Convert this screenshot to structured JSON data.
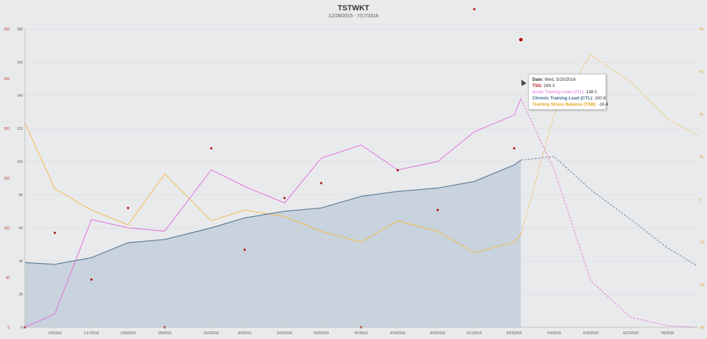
{
  "chart_data": {
    "type": "line",
    "title": "TSTWKT",
    "subtitle": "12/28/2015 - 7/17/2016",
    "x_ticks": [
      "1/6/2016",
      "1/17/2016",
      "1/28/2016",
      "2/8/2016",
      "2/22/2016",
      "3/3/2016",
      "3/15/2016",
      "3/26/2016",
      "4/7/2016",
      "4/18/2016",
      "4/30/2016",
      "5/11/2016",
      "5/23/2016",
      "6/4/2016",
      "6/15/2016",
      "6/27/2016",
      "7/8/2016"
    ],
    "y_left_outer_ticks": [
      "0",
      "50",
      "100",
      "150",
      "200",
      "250",
      "300"
    ],
    "y_left_inner_ticks": [
      "0",
      "20",
      "40",
      "60",
      "80",
      "100",
      "120",
      "140",
      "160",
      "180"
    ],
    "y_right_ticks": [
      "-60",
      "-40",
      "-20",
      "0",
      "20",
      "40",
      "60",
      "80"
    ],
    "ylim_left_inner": [
      0,
      180
    ],
    "ylim_left_outer": [
      0,
      300
    ],
    "ylim_right": [
      -60,
      80
    ],
    "grid": true,
    "colors": {
      "ctl_line": "#5a7a94",
      "ctl_fill": "#c3cfdb",
      "atl": "#e06ed9",
      "tsb": "#f5b945",
      "tss": "#b01010"
    },
    "series": [
      {
        "name": "Chronic Training Load (CTL)",
        "axis": "inner",
        "x": [
          "12/28/2015",
          "1/6/2016",
          "1/17/2016",
          "1/28/2016",
          "2/8/2016",
          "2/22/2016",
          "3/3/2016",
          "3/15/2016",
          "3/26/2016",
          "4/7/2016",
          "4/18/2016",
          "4/30/2016",
          "5/11/2016",
          "5/23/2016",
          "5/25/2016",
          "6/4/2016",
          "6/15/2016",
          "6/27/2016",
          "7/8/2016",
          "7/17/2016"
        ],
        "values": [
          39,
          38,
          42,
          51,
          53,
          60,
          66,
          70,
          72,
          79,
          82,
          84,
          88,
          98,
          100.9,
          103,
          83,
          65,
          48,
          37
        ]
      },
      {
        "name": "Acute Training Load (ATL)",
        "axis": "inner",
        "x": [
          "12/28/2015",
          "1/6/2016",
          "1/17/2016",
          "1/28/2016",
          "2/8/2016",
          "2/22/2016",
          "3/3/2016",
          "3/15/2016",
          "3/26/2016",
          "4/7/2016",
          "4/18/2016",
          "4/30/2016",
          "5/11/2016",
          "5/23/2016",
          "5/25/2016",
          "6/4/2016",
          "6/15/2016",
          "6/27/2016",
          "7/8/2016",
          "7/17/2016"
        ],
        "values": [
          0,
          8,
          65,
          60,
          58,
          95,
          85,
          75,
          102,
          110,
          95,
          100,
          118,
          128,
          138,
          95,
          28,
          6,
          1,
          0
        ]
      },
      {
        "name": "Training Stress Balance (TSB)",
        "axis": "right",
        "x": [
          "12/28/2015",
          "1/6/2016",
          "1/17/2016",
          "1/28/2016",
          "2/8/2016",
          "2/22/2016",
          "3/3/2016",
          "3/15/2016",
          "3/26/2016",
          "4/7/2016",
          "4/18/2016",
          "4/30/2016",
          "5/11/2016",
          "5/23/2016",
          "5/25/2016",
          "6/4/2016",
          "6/15/2016",
          "6/27/2016",
          "7/8/2016",
          "7/17/2016"
        ],
        "values": [
          36,
          5,
          -5,
          -12,
          12,
          -10,
          -5,
          -8,
          -15,
          -20,
          -10,
          -15,
          -25,
          -20,
          -16.4,
          40,
          68,
          55,
          38,
          30
        ]
      },
      {
        "name": "TSS",
        "axis": "outer",
        "kind": "scatter",
        "x": [
          "12/28/2015",
          "1/6/2016",
          "1/17/2016",
          "1/28/2016",
          "2/8/2016",
          "2/22/2016",
          "3/3/2016",
          "3/15/2016",
          "3/26/2016",
          "4/7/2016",
          "4/18/2016",
          "4/30/2016",
          "5/11/2016",
          "5/23/2016",
          "5/25/2016"
        ],
        "values": [
          0,
          95,
          48,
          120,
          0,
          180,
          78,
          130,
          145,
          0,
          158,
          118,
          320,
          180,
          289.3
        ]
      }
    ]
  },
  "tooltip": {
    "date_label": "Date:",
    "date_value": "Wed, 5/25/2016",
    "tss_label": "TSS:",
    "tss_value": "289.3",
    "atl_label": "Acute Training Load (ATL):",
    "atl_value": "138.0",
    "ctl_label": "Chronic Training Load (CTL):",
    "ctl_value": "100.9",
    "tsb_label": "Training Stress Balance (TSB):",
    "tsb_value": "-16.4"
  }
}
